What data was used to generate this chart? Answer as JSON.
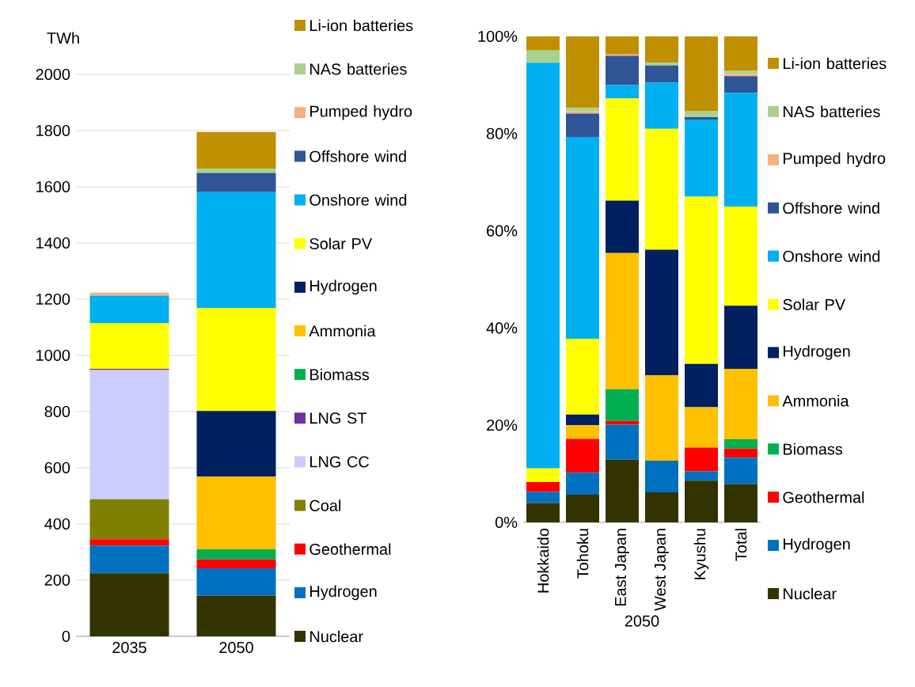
{
  "chart_data": [
    {
      "type": "bar",
      "stacked": true,
      "ylabel": "TWh",
      "categories": [
        "2035",
        "2050"
      ],
      "ylim": [
        0,
        2000
      ],
      "yticks": [
        0,
        200,
        400,
        600,
        800,
        1000,
        1200,
        1400,
        1600,
        1800,
        2000
      ],
      "grid": "y",
      "legend": "right",
      "series": [
        {
          "name": "Nuclear",
          "color": "#333300",
          "values": [
            225,
            145
          ]
        },
        {
          "name": "Hydrogen",
          "color": "#0070c0",
          "values": [
            98,
            97
          ]
        },
        {
          "name": "Geothermal",
          "color": "#ff0000",
          "values": [
            23,
            32
          ]
        },
        {
          "name": "Coal",
          "color": "#808000",
          "values": [
            142,
            0
          ]
        },
        {
          "name": "LNG CC",
          "color": "#ccccff",
          "values": [
            460,
            0
          ]
        },
        {
          "name": "LNG ST",
          "color": "#7030a0",
          "values": [
            4,
            0
          ]
        },
        {
          "name": "Biomass",
          "color": "#00b050",
          "values": [
            0,
            36
          ]
        },
        {
          "name": "Ammonia",
          "color": "#ffc000",
          "values": [
            0,
            259
          ]
        },
        {
          "name": "Hydrogen",
          "color": "#002060",
          "values": [
            0,
            233
          ]
        },
        {
          "name": "Solar PV",
          "color": "#ffff00",
          "values": [
            162,
            366
          ]
        },
        {
          "name": "Onshore wind",
          "color": "#00b0f0",
          "values": [
            99,
            413
          ]
        },
        {
          "name": "Offshore wind",
          "color": "#2f5597",
          "values": [
            0,
            68
          ]
        },
        {
          "name": "Pumped hydro",
          "color": "#f4b183",
          "values": [
            10,
            0
          ]
        },
        {
          "name": "NAS batteries",
          "color": "#a9d18e",
          "values": [
            0,
            15
          ]
        },
        {
          "name": "Li-ion batteries",
          "color": "#bf9000",
          "values": [
            0,
            131
          ]
        }
      ]
    },
    {
      "type": "bar",
      "stacked": true,
      "xlabel": "2050",
      "categories": [
        "Hokkaido",
        "Tohoku",
        "East Japan",
        "West Japan",
        "Kyushu",
        "Total"
      ],
      "ylim": [
        0,
        100
      ],
      "yticks": [
        {
          "value": 0,
          "label": "0%"
        },
        {
          "value": 20,
          "label": "20%"
        },
        {
          "value": 40,
          "label": "40%"
        },
        {
          "value": 60,
          "label": "60%"
        },
        {
          "value": 80,
          "label": "80%"
        },
        {
          "value": 100,
          "label": "100%"
        }
      ],
      "legend": "right",
      "series": [
        {
          "name": "Nuclear",
          "color": "#333300",
          "values": [
            4.0,
            5.7,
            12.9,
            6.2,
            8.6,
            7.9
          ]
        },
        {
          "name": "Hydrogen",
          "color": "#0070c0",
          "values": [
            2.3,
            4.5,
            7.2,
            6.5,
            1.9,
            5.4
          ]
        },
        {
          "name": "Geothermal",
          "color": "#ff0000",
          "values": [
            2.0,
            7.0,
            0.8,
            0,
            4.9,
            1.9
          ]
        },
        {
          "name": "Biomass",
          "color": "#00b050",
          "values": [
            0,
            0,
            6.5,
            0,
            0,
            1.9
          ]
        },
        {
          "name": "Ammonia",
          "color": "#ffc000",
          "values": [
            0,
            2.8,
            28.0,
            17.6,
            8.3,
            14.5
          ]
        },
        {
          "name": "Hydrogen",
          "color": "#002060",
          "values": [
            0,
            2.2,
            10.8,
            25.8,
            8.9,
            13.0
          ]
        },
        {
          "name": "Solar PV",
          "color": "#ffff00",
          "values": [
            2.8,
            15.6,
            21.0,
            24.9,
            34.4,
            20.4
          ]
        },
        {
          "name": "Onshore wind",
          "color": "#00b0f0",
          "values": [
            83.5,
            41.5,
            2.8,
            9.5,
            15.9,
            23.4
          ]
        },
        {
          "name": "Offshore wind",
          "color": "#2f5597",
          "values": [
            0,
            4.8,
            6.0,
            3.5,
            0.5,
            3.4
          ]
        },
        {
          "name": "Pumped hydro",
          "color": "#f4b183",
          "values": [
            0,
            0.5,
            0.3,
            0,
            0,
            0.5
          ]
        },
        {
          "name": "NAS batteries",
          "color": "#a9d18e",
          "values": [
            2.5,
            0.7,
            0,
            0.6,
            1.3,
            0.6
          ]
        },
        {
          "name": "Li-ion batteries",
          "color": "#bf9000",
          "values": [
            2.9,
            14.7,
            3.7,
            5.4,
            15.3,
            7.1
          ]
        }
      ]
    }
  ]
}
